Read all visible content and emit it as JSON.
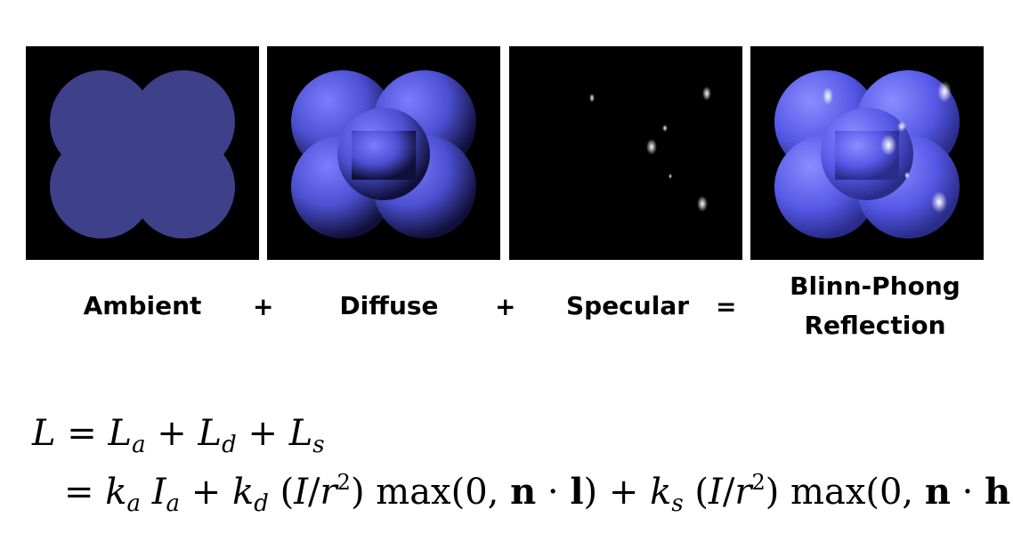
{
  "panels": [
    {
      "label": "Ambient"
    },
    {
      "label": "Diffuse"
    },
    {
      "label": "Specular"
    },
    {
      "label_line1": "Blinn-Phong",
      "label_line2": "Reflection"
    }
  ],
  "operators": [
    "+",
    "+",
    "="
  ],
  "colors": {
    "ambient": "#3e408a",
    "diffuse": "#5a5de6",
    "background": "#000000",
    "highlight": "#ffffff"
  }
}
